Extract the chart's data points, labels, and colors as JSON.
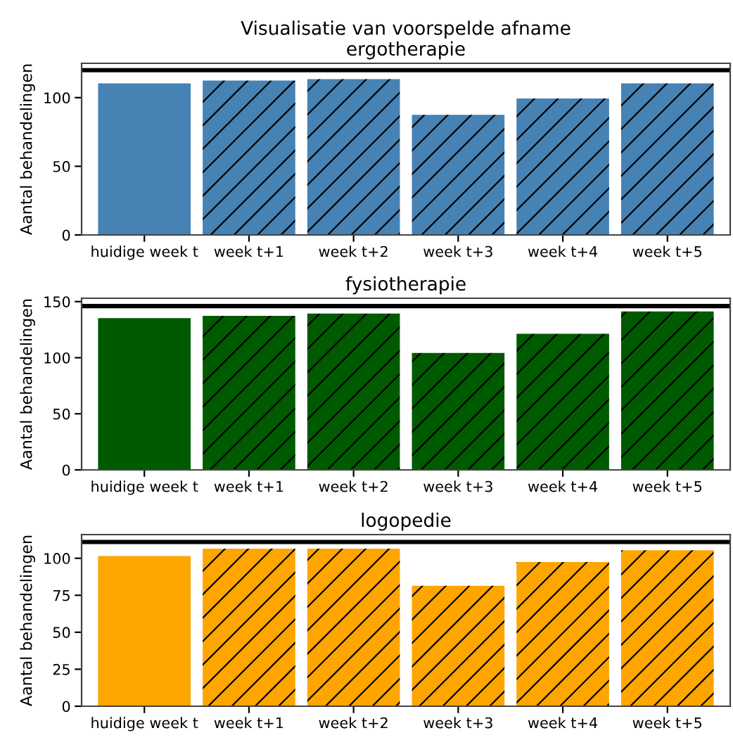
{
  "chart_data": [
    {
      "type": "bar",
      "title": "Visualisatie van voorspelde afname",
      "subtitle": "ergotherapie",
      "ylabel": "Aantal behandelingen",
      "categories": [
        "huidige week t",
        "week t+1",
        "week t+2",
        "week t+3",
        "week t+4",
        "week t+5"
      ],
      "series": [
        {
          "color": "#4682b4",
          "values": [
            111,
            null,
            null,
            null,
            null,
            null
          ]
        },
        {
          "color": "#4682b4",
          "values": [
            null,
            113,
            114,
            88,
            100,
            111
          ]
        }
      ],
      "ylim": [
        0,
        125
      ],
      "yticks": [
        0,
        50,
        100
      ],
      "ref_lines": [
        {
          "axis": "y",
          "value": 120,
          "color": "#000000"
        }
      ],
      "grid": false
    },
    {
      "type": "bar",
      "title": "fysiotherapie",
      "ylabel": "Aantal behandelingen",
      "categories": [
        "huidige week t",
        "week t+1",
        "week t+2",
        "week t+3",
        "week t+4",
        "week t+5"
      ],
      "series": [
        {
          "color": "#005a00",
          "values": [
            136,
            null,
            null,
            null,
            null,
            null
          ]
        },
        {
          "color": "#005a00",
          "values": [
            null,
            138,
            140,
            105,
            122,
            142
          ]
        }
      ],
      "ylim": [
        0,
        153
      ],
      "yticks": [
        0,
        50,
        100,
        150
      ],
      "ref_lines": [
        {
          "axis": "y",
          "value": 146,
          "color": "#000000"
        }
      ],
      "grid": false
    },
    {
      "type": "bar",
      "title": "logopedie",
      "ylabel": "Aantal behandelingen",
      "categories": [
        "huidige week t",
        "week t+1",
        "week t+2",
        "week t+3",
        "week t+4",
        "week t+5"
      ],
      "series": [
        {
          "color": "#ffa500",
          "values": [
            102,
            null,
            null,
            null,
            null,
            null
          ]
        },
        {
          "color": "#ffa500",
          "values": [
            null,
            107,
            107,
            82,
            98,
            106
          ]
        }
      ],
      "ylim": [
        0,
        116
      ],
      "yticks": [
        0,
        25,
        50,
        75,
        100
      ],
      "ref_lines": [
        {
          "axis": "y",
          "value": 111,
          "color": "#000000"
        }
      ],
      "grid": false
    }
  ]
}
